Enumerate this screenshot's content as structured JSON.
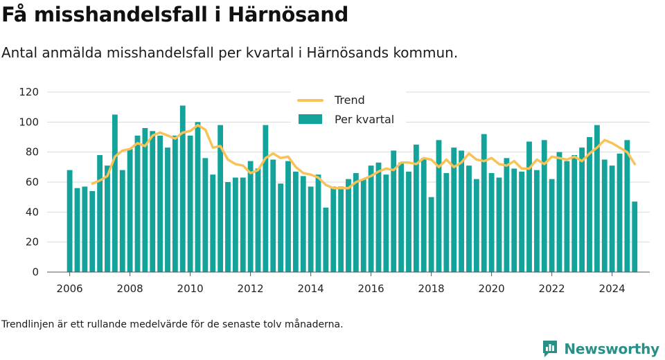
{
  "title": "Få misshandelsfall i Härnösand",
  "subtitle": "Antal anmälda misshandelsfall per kvartal i Härnösands kommun.",
  "footnote": "Trendlinjen är ett rullande medelvärde för de senaste tolv månaderna.",
  "brand": {
    "name": "Newsworthy",
    "icon": "newsworthy-logo-icon"
  },
  "colors": {
    "bars": "#13a39a",
    "trend": "#f7c359",
    "grid": "#d9d9d9",
    "axis": "#555555",
    "brand": "#2a8f86"
  },
  "chart_data": {
    "type": "bar",
    "title": "Få misshandelsfall i Härnösand",
    "xlabel": "",
    "ylabel": "",
    "ylim": [
      0,
      120
    ],
    "yticks": [
      0,
      20,
      40,
      60,
      80,
      100,
      120
    ],
    "xticks": [
      2006,
      2008,
      2010,
      2012,
      2014,
      2016,
      2018,
      2020,
      2022,
      2024
    ],
    "grid": true,
    "legend_position": "top-center",
    "x": [
      2006.0,
      2006.25,
      2006.5,
      2006.75,
      2007.0,
      2007.25,
      2007.5,
      2007.75,
      2008.0,
      2008.25,
      2008.5,
      2008.75,
      2009.0,
      2009.25,
      2009.5,
      2009.75,
      2010.0,
      2010.25,
      2010.5,
      2010.75,
      2011.0,
      2011.25,
      2011.5,
      2011.75,
      2012.0,
      2012.25,
      2012.5,
      2012.75,
      2013.0,
      2013.25,
      2013.5,
      2013.75,
      2014.0,
      2014.25,
      2014.5,
      2014.75,
      2015.0,
      2015.25,
      2015.5,
      2015.75,
      2016.0,
      2016.25,
      2016.5,
      2016.75,
      2017.0,
      2017.25,
      2017.5,
      2017.75,
      2018.0,
      2018.25,
      2018.5,
      2018.75,
      2019.0,
      2019.25,
      2019.5,
      2019.75,
      2020.0,
      2020.25,
      2020.5,
      2020.75,
      2021.0,
      2021.25,
      2021.5,
      2021.75,
      2022.0,
      2022.25,
      2022.5,
      2022.75,
      2023.0,
      2023.25,
      2023.5,
      2023.75,
      2024.0,
      2024.25,
      2024.5,
      2024.75
    ],
    "series": [
      {
        "name": "Per kvartal",
        "type": "bar",
        "values": [
          68,
          56,
          57,
          54,
          78,
          71,
          105,
          68,
          82,
          91,
          96,
          94,
          91,
          83,
          91,
          111,
          91,
          100,
          76,
          65,
          98,
          60,
          63,
          63,
          74,
          69,
          98,
          75,
          59,
          74,
          67,
          64,
          57,
          65,
          43,
          57,
          57,
          62,
          66,
          62,
          71,
          73,
          65,
          81,
          73,
          67,
          85,
          76,
          50,
          88,
          66,
          83,
          81,
          71,
          62,
          92,
          66,
          63,
          76,
          69,
          67,
          87,
          68,
          88,
          62,
          80,
          74,
          78,
          83,
          90,
          98,
          75,
          71,
          79,
          88,
          47
        ]
      },
      {
        "name": "Trend",
        "type": "line",
        "x": [
          2006.75,
          2007.0,
          2007.25,
          2007.5,
          2007.75,
          2008.0,
          2008.25,
          2008.5,
          2008.75,
          2009.0,
          2009.25,
          2009.5,
          2009.75,
          2010.0,
          2010.25,
          2010.5,
          2010.75,
          2011.0,
          2011.25,
          2011.5,
          2011.75,
          2012.0,
          2012.25,
          2012.5,
          2012.75,
          2013.0,
          2013.25,
          2013.5,
          2013.75,
          2014.0,
          2014.25,
          2014.5,
          2014.75,
          2015.0,
          2015.25,
          2015.5,
          2015.75,
          2016.0,
          2016.25,
          2016.5,
          2016.75,
          2017.0,
          2017.25,
          2017.5,
          2017.75,
          2018.0,
          2018.25,
          2018.5,
          2018.75,
          2019.0,
          2019.25,
          2019.5,
          2019.75,
          2020.0,
          2020.25,
          2020.5,
          2020.75,
          2021.0,
          2021.25,
          2021.5,
          2021.75,
          2022.0,
          2022.25,
          2022.5,
          2022.75,
          2023.0,
          2023.25,
          2023.5,
          2023.75,
          2024.0,
          2024.25,
          2024.5,
          2024.75
        ],
        "values": [
          59,
          61,
          64,
          77,
          81,
          82,
          86,
          84,
          91,
          93,
          91,
          89,
          93,
          94,
          98,
          95,
          83,
          84,
          75,
          72,
          71,
          66,
          68,
          76,
          79,
          76,
          77,
          70,
          66,
          65,
          63,
          58,
          56,
          56,
          56,
          60,
          62,
          64,
          67,
          69,
          68,
          73,
          73,
          72,
          76,
          75,
          70,
          75,
          70,
          73,
          79,
          75,
          74,
          76,
          72,
          71,
          74,
          69,
          69,
          75,
          72,
          77,
          76,
          75,
          77,
          74,
          79,
          83,
          88,
          86,
          83,
          80,
          72
        ]
      }
    ]
  }
}
